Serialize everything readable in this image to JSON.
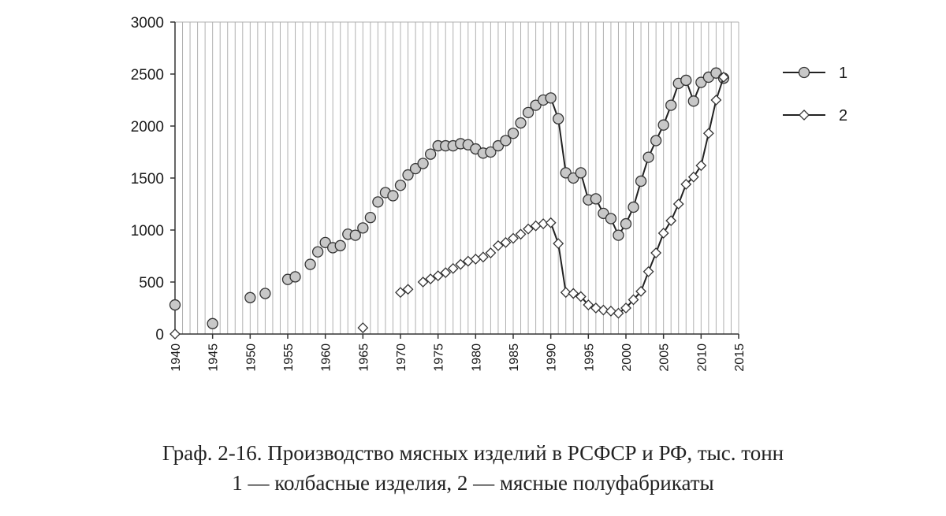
{
  "caption": {
    "line1": "Граф. 2-16. Производство мясных изделий в РСФСР и РФ, тыс. тонн",
    "line2": "1 — колбасные изделия, 2 — мясные полуфабрикаты"
  },
  "chart_data": {
    "type": "line",
    "title": "",
    "xlabel": "",
    "ylabel": "",
    "xlim": [
      1940,
      2015
    ],
    "ylim": [
      0,
      3000
    ],
    "x_ticks": [
      1940,
      1945,
      1950,
      1955,
      1960,
      1965,
      1970,
      1975,
      1980,
      1985,
      1990,
      1995,
      2000,
      2005,
      2010,
      2015
    ],
    "y_ticks": [
      0,
      500,
      1000,
      1500,
      2000,
      2500,
      3000
    ],
    "grid": "vertical",
    "legend_position": "top-right",
    "series": [
      {
        "name": "1",
        "marker": "circle",
        "color": "#c8c8c8",
        "x": [
          1940,
          1945,
          1950,
          1952,
          1955,
          1956,
          1958,
          1959,
          1960,
          1961,
          1962,
          1963,
          1964,
          1965,
          1966,
          1967,
          1968,
          1969,
          1970,
          1971,
          1972,
          1973,
          1974,
          1975,
          1976,
          1977,
          1978,
          1979,
          1980,
          1981,
          1982,
          1983,
          1984,
          1985,
          1986,
          1987,
          1988,
          1989,
          1990,
          1991,
          1992,
          1993,
          1994,
          1995,
          1996,
          1997,
          1998,
          1999,
          2000,
          2001,
          2002,
          2003,
          2004,
          2005,
          2006,
          2007,
          2008,
          2009,
          2010,
          2011,
          2012,
          2013
        ],
        "y": [
          280,
          100,
          350,
          390,
          525,
          550,
          670,
          790,
          880,
          830,
          850,
          960,
          950,
          1020,
          1120,
          1270,
          1360,
          1330,
          1430,
          1530,
          1590,
          1640,
          1730,
          1810,
          1810,
          1810,
          1830,
          1820,
          1780,
          1740,
          1750,
          1810,
          1860,
          1930,
          2030,
          2130,
          2200,
          2250,
          2270,
          2070,
          1550,
          1500,
          1550,
          1290,
          1300,
          1160,
          1110,
          950,
          1060,
          1220,
          1470,
          1700,
          1860,
          2010,
          2200,
          2410,
          2440,
          2240,
          2420,
          2470,
          2510,
          2460
        ],
        "connected_from": 1990
      },
      {
        "name": "2",
        "marker": "diamond",
        "color": "#ffffff",
        "x": [
          1940,
          1965,
          1970,
          1971,
          1973,
          1974,
          1975,
          1976,
          1977,
          1978,
          1979,
          1980,
          1981,
          1982,
          1983,
          1984,
          1985,
          1986,
          1987,
          1988,
          1989,
          1990,
          1991,
          1992,
          1993,
          1994,
          1995,
          1996,
          1997,
          1998,
          1999,
          2000,
          2001,
          2002,
          2003,
          2004,
          2005,
          2006,
          2007,
          2008,
          2009,
          2010,
          2011,
          2012,
          2013
        ],
        "y": [
          0,
          60,
          400,
          430,
          500,
          530,
          560,
          590,
          630,
          670,
          700,
          720,
          740,
          780,
          850,
          880,
          920,
          960,
          1010,
          1040,
          1060,
          1070,
          870,
          400,
          390,
          360,
          280,
          250,
          230,
          220,
          200,
          250,
          330,
          410,
          600,
          780,
          970,
          1090,
          1250,
          1440,
          1510,
          1620,
          1930,
          2250,
          2470
        ],
        "connected_from": 1990
      }
    ]
  }
}
